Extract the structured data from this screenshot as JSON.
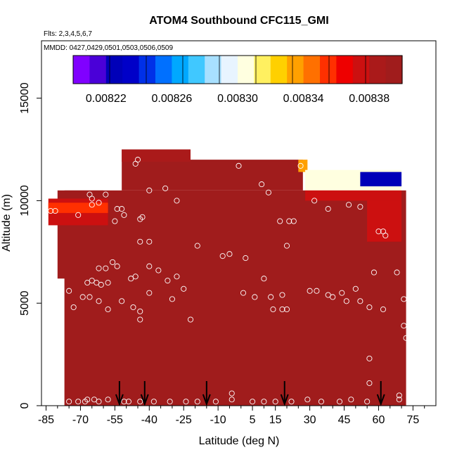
{
  "chart_data": {
    "type": "heatmap",
    "title": "ATOM4 Southbound CFC115_GMI",
    "subtitle_flights": "Flts: 2,3,4,5,6,7",
    "subtitle_dates": "MMDD: 0427,0429,0501,0503,0506,0509",
    "xlabel": "Latitude (deg N)",
    "ylabel": "Altitude (m)",
    "xlim": [
      -87,
      85
    ],
    "ylim": [
      0,
      17800
    ],
    "x_tick_labels": [
      "-85",
      "-70",
      "-55",
      "-40",
      "-25",
      "-10",
      "5",
      "15",
      "30",
      "45",
      "60",
      "75"
    ],
    "x_tick_values": [
      -85,
      -70,
      -55,
      -40,
      -25,
      -10,
      5,
      15,
      30,
      45,
      60,
      75
    ],
    "x_minor_ticks": [
      -80,
      -75,
      -65,
      -60,
      -50,
      -45,
      -35,
      -30,
      -20,
      -15,
      -5,
      0,
      10,
      20,
      25,
      35,
      40,
      50,
      55,
      65,
      70,
      80
    ],
    "y_tick_labels": [
      "0",
      "5000",
      "10000",
      "15000"
    ],
    "y_tick_values": [
      0,
      5000,
      10000,
      15000
    ],
    "colorbar": {
      "min": 0.0082,
      "max": 0.0084,
      "tick_labels": [
        "0.00822",
        "0.00826",
        "0.00830",
        "0.00834",
        "0.00838"
      ],
      "tick_values": [
        0.00822,
        0.00826,
        0.0083,
        0.00834,
        0.00838
      ],
      "colors": [
        "#8000ff",
        "#4a00d8",
        "#0000b8",
        "#0000c8",
        "#0030e8",
        "#0070ff",
        "#00a8ff",
        "#40c8ff",
        "#a8e0ff",
        "#e8f4ff",
        "#ffffe0",
        "#fff060",
        "#ffd000",
        "#ffa000",
        "#ff7000",
        "#ff3000",
        "#ee0000",
        "#cc1010",
        "#aa1a1a",
        "#a01c1c"
      ]
    },
    "background_value": 0.00839,
    "field_regions": [
      {
        "lat_min": -77,
        "lat_max": 72,
        "alt_min": 0,
        "alt_max": 10500,
        "value": 0.00839
      },
      {
        "lat_min": -52,
        "lat_max": -22,
        "alt_min": 10500,
        "alt_max": 12500,
        "value": 0.00839
      },
      {
        "lat_min": -22,
        "lat_max": 27,
        "alt_min": 10500,
        "alt_max": 12000,
        "value": 0.00839
      },
      {
        "lat_min": -80,
        "lat_max": -60,
        "alt_min": 6200,
        "alt_max": 10500,
        "value": 0.00839
      }
    ],
    "field_gradients": [
      {
        "lat_min": -84,
        "lat_max": -58,
        "alt_min": 8800,
        "alt_max": 10100,
        "value": 0.00837
      },
      {
        "lat_min": -84,
        "lat_max": -58,
        "alt_min": 9400,
        "alt_max": 9900,
        "value": 0.00836
      },
      {
        "lat_min": -52,
        "lat_max": -22,
        "alt_min": 11900,
        "alt_max": 12500,
        "value": 0.00838
      },
      {
        "lat_min": 25,
        "lat_max": 29,
        "alt_min": 11400,
        "alt_max": 12000,
        "value": 0.00833
      },
      {
        "lat_min": 28,
        "lat_max": 70,
        "alt_min": 10500,
        "alt_max": 11500,
        "value": 0.0083
      },
      {
        "lat_min": 52,
        "lat_max": 70,
        "alt_min": 10700,
        "alt_max": 11400,
        "value": 0.00823
      },
      {
        "lat_min": 28,
        "lat_max": 70,
        "alt_min": 10000,
        "alt_max": 10500,
        "value": 0.00837
      },
      {
        "lat_min": 55,
        "lat_max": 70,
        "alt_min": 8000,
        "alt_max": 10000,
        "value": 0.00837
      }
    ],
    "observations": [
      {
        "lat": -86,
        "alt": 6300
      },
      {
        "lat": -83,
        "alt": 9500
      },
      {
        "lat": -81,
        "alt": 9500
      },
      {
        "lat": -75,
        "alt": 5600
      },
      {
        "lat": -73,
        "alt": 4800
      },
      {
        "lat": -71,
        "alt": 9300
      },
      {
        "lat": -69,
        "alt": 11700
      },
      {
        "lat": -67,
        "alt": 10900
      },
      {
        "lat": -66,
        "alt": 10300
      },
      {
        "lat": -65,
        "alt": 10100
      },
      {
        "lat": -65,
        "alt": 9800
      },
      {
        "lat": -62,
        "alt": 9900
      },
      {
        "lat": -61,
        "alt": 11400
      },
      {
        "lat": -59,
        "alt": 10300
      },
      {
        "lat": -56,
        "alt": 11800
      },
      {
        "lat": -54,
        "alt": 9600
      },
      {
        "lat": -52,
        "alt": 9600
      },
      {
        "lat": -55,
        "alt": 9000
      },
      {
        "lat": -51,
        "alt": 9300
      },
      {
        "lat": -46,
        "alt": 11800
      },
      {
        "lat": -45,
        "alt": 12000
      },
      {
        "lat": -44,
        "alt": 9100
      },
      {
        "lat": -43,
        "alt": 9200
      },
      {
        "lat": -40,
        "alt": 10500
      },
      {
        "lat": -33,
        "alt": 10600
      },
      {
        "lat": -28,
        "alt": 10000
      },
      {
        "lat": -15,
        "alt": 12300
      },
      {
        "lat": -13,
        "alt": 12300
      },
      {
        "lat": -1,
        "alt": 11700
      },
      {
        "lat": 9,
        "alt": 10800
      },
      {
        "lat": 12,
        "alt": 10400
      },
      {
        "lat": 17,
        "alt": 9000
      },
      {
        "lat": 21,
        "alt": 9000
      },
      {
        "lat": 23,
        "alt": 9000
      },
      {
        "lat": 26,
        "alt": 11700
      },
      {
        "lat": 32,
        "alt": 10000
      },
      {
        "lat": 38,
        "alt": 9600
      },
      {
        "lat": 47,
        "alt": 9800
      },
      {
        "lat": 52,
        "alt": 9700
      },
      {
        "lat": 60,
        "alt": 8500
      },
      {
        "lat": 62,
        "alt": 8500
      },
      {
        "lat": 63,
        "alt": 8300
      },
      {
        "lat": -44,
        "alt": 8000
      },
      {
        "lat": -40,
        "alt": 8000
      },
      {
        "lat": -19,
        "alt": 7800
      },
      {
        "lat": -8,
        "alt": 7300
      },
      {
        "lat": -5,
        "alt": 7400
      },
      {
        "lat": 2,
        "alt": 7200
      },
      {
        "lat": 20,
        "alt": 7800
      },
      {
        "lat": -40,
        "alt": 6800
      },
      {
        "lat": -36,
        "alt": 6600
      },
      {
        "lat": -32,
        "alt": 6100
      },
      {
        "lat": -28,
        "alt": 6300
      },
      {
        "lat": -48,
        "alt": 6200
      },
      {
        "lat": -46,
        "alt": 6300
      },
      {
        "lat": -54,
        "alt": 6800
      },
      {
        "lat": -56,
        "alt": 7000
      },
      {
        "lat": -59,
        "alt": 6700
      },
      {
        "lat": -62,
        "alt": 6700
      },
      {
        "lat": -61,
        "alt": 5900
      },
      {
        "lat": -63,
        "alt": 6000
      },
      {
        "lat": -65,
        "alt": 6100
      },
      {
        "lat": -67,
        "alt": 6000
      },
      {
        "lat": -69,
        "alt": 5300
      },
      {
        "lat": -66,
        "alt": 5300
      },
      {
        "lat": -62,
        "alt": 5100
      },
      {
        "lat": -58,
        "alt": 6000
      },
      {
        "lat": -58,
        "alt": 4700
      },
      {
        "lat": -52,
        "alt": 5100
      },
      {
        "lat": -47,
        "alt": 4800
      },
      {
        "lat": -44,
        "alt": 4600
      },
      {
        "lat": -44,
        "alt": 4200
      },
      {
        "lat": -40,
        "alt": 5500
      },
      {
        "lat": -30,
        "alt": 5200
      },
      {
        "lat": -25,
        "alt": 5700
      },
      {
        "lat": -22,
        "alt": 4200
      },
      {
        "lat": 1,
        "alt": 5500
      },
      {
        "lat": 6,
        "alt": 5300
      },
      {
        "lat": 10,
        "alt": 6200
      },
      {
        "lat": 13,
        "alt": 5300
      },
      {
        "lat": 14,
        "alt": 4700
      },
      {
        "lat": 18,
        "alt": 5400
      },
      {
        "lat": 18,
        "alt": 4700
      },
      {
        "lat": 20,
        "alt": 4700
      },
      {
        "lat": 30,
        "alt": 5600
      },
      {
        "lat": 33,
        "alt": 5600
      },
      {
        "lat": 38,
        "alt": 5400
      },
      {
        "lat": 40,
        "alt": 5300
      },
      {
        "lat": 44,
        "alt": 5500
      },
      {
        "lat": 46,
        "alt": 5100
      },
      {
        "lat": 50,
        "alt": 5700
      },
      {
        "lat": 52,
        "alt": 5100
      },
      {
        "lat": 56,
        "alt": 4800
      },
      {
        "lat": 58,
        "alt": 6500
      },
      {
        "lat": 62,
        "alt": 4700
      },
      {
        "lat": 68,
        "alt": 6500
      },
      {
        "lat": 71,
        "alt": 5200
      },
      {
        "lat": 71,
        "alt": 3900
      },
      {
        "lat": 72,
        "alt": 3300
      },
      {
        "lat": 56,
        "alt": 2300
      },
      {
        "lat": 56,
        "alt": 1100
      },
      {
        "lat": 69,
        "alt": 500
      },
      {
        "lat": 69,
        "alt": 300
      },
      {
        "lat": 55,
        "alt": 200
      },
      {
        "lat": 48,
        "alt": 300
      },
      {
        "lat": 43,
        "alt": 200
      },
      {
        "lat": 35,
        "alt": 200
      },
      {
        "lat": 29,
        "alt": 300
      },
      {
        "lat": 22,
        "alt": 200
      },
      {
        "lat": 15,
        "alt": 200
      },
      {
        "lat": 10,
        "alt": 200
      },
      {
        "lat": 5,
        "alt": 200
      },
      {
        "lat": -4,
        "alt": 600
      },
      {
        "lat": -4,
        "alt": 300
      },
      {
        "lat": -11,
        "alt": 200
      },
      {
        "lat": -19,
        "alt": 200
      },
      {
        "lat": -24,
        "alt": 200
      },
      {
        "lat": -31,
        "alt": 200
      },
      {
        "lat": -38,
        "alt": 200
      },
      {
        "lat": -44,
        "alt": 200
      },
      {
        "lat": -49,
        "alt": 200
      },
      {
        "lat": -51,
        "alt": 200
      },
      {
        "lat": -58,
        "alt": 300
      },
      {
        "lat": -62,
        "alt": 200
      },
      {
        "lat": -64,
        "alt": 300
      },
      {
        "lat": -67,
        "alt": 300
      },
      {
        "lat": -68,
        "alt": 200
      },
      {
        "lat": -71,
        "alt": 200
      },
      {
        "lat": -75,
        "alt": 200
      }
    ],
    "arrow_latitudes": [
      -53,
      -42,
      -15,
      19,
      61
    ],
    "grid": false,
    "legend": "colorbar-top-inside"
  }
}
